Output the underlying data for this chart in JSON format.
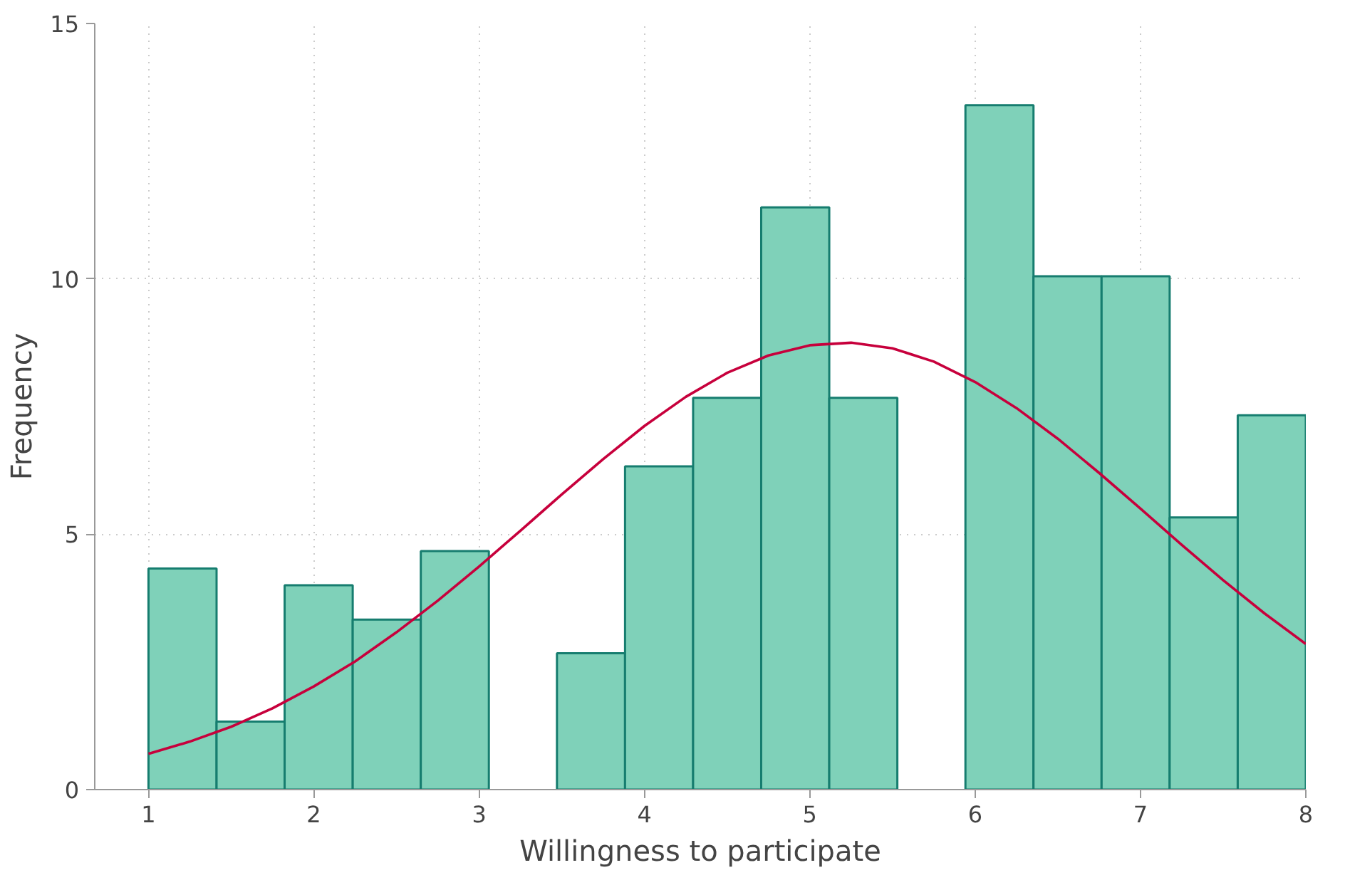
{
  "chart_data": {
    "type": "histogram",
    "xlabel": "Willingness to participate",
    "ylabel": "Frequency",
    "xlim": [
      0.675,
      8
    ],
    "ylim": [
      0,
      15
    ],
    "xticks": [
      1,
      2,
      3,
      4,
      5,
      6,
      7,
      8
    ],
    "yticks": [
      0,
      5,
      10,
      15
    ],
    "grid": true,
    "series": [
      {
        "color": "#7fd1b9",
        "bins": [
          1,
          1.4118,
          1.8235,
          2.2353,
          2.6471,
          3.0588,
          3.4706,
          3.8824,
          4.2941,
          4.7059,
          5.1176,
          5.5294,
          5.9412,
          6.3529,
          6.7647,
          7.1765,
          7.5882,
          8
        ],
        "values": [
          4.33,
          1.33,
          4,
          3.33,
          4.67,
          0,
          2.67,
          6.33,
          7.67,
          11.4,
          7.67,
          0,
          13.4,
          10.05,
          10.05,
          5.33,
          7.33
        ]
      },
      {
        "type": "line",
        "color": "#c7003c",
        "x": [
          1,
          1.25,
          1.5,
          1.75,
          2,
          2.25,
          2.5,
          2.75,
          3,
          3.25,
          3.5,
          3.75,
          4,
          4.25,
          4.5,
          4.75,
          5,
          5.25,
          5.5,
          5.75,
          6,
          6.25,
          6.5,
          6.75,
          7,
          7.25,
          7.5,
          7.75,
          8
        ],
        "values": [
          0.7,
          0.94,
          1.23,
          1.59,
          2.02,
          2.51,
          3.08,
          3.7,
          4.37,
          5.07,
          5.78,
          6.47,
          7.12,
          7.69,
          8.16,
          8.5,
          8.7,
          8.75,
          8.64,
          8.38,
          7.98,
          7.47,
          6.87,
          6.2,
          5.5,
          4.79,
          4.1,
          3.45,
          2.85
        ]
      }
    ]
  }
}
